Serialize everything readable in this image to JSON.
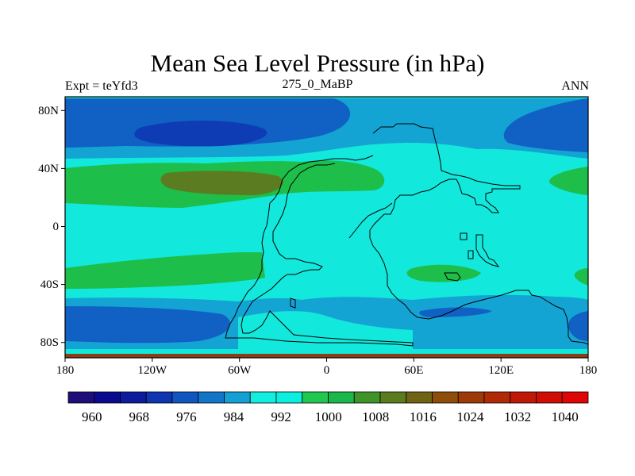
{
  "title": "Mean Sea Level Pressure (in hPa)",
  "subtitle_left": "Expt = teYfd3",
  "subtitle_center": "275_0_MaBP",
  "subtitle_right": "ANN",
  "x_axis": {
    "ticks": [
      "180",
      "120W",
      "60W",
      "0",
      "60E",
      "120E",
      "180"
    ]
  },
  "y_axis": {
    "ticks": [
      "80N",
      "40N",
      "0",
      "40S",
      "80S"
    ]
  },
  "colorbar": {
    "labels": [
      "960",
      "968",
      "976",
      "984",
      "992",
      "1000",
      "1008",
      "1016",
      "1024",
      "1032",
      "1040"
    ],
    "colors": [
      "#1e0e7a",
      "#0a0a8e",
      "#0c1c9c",
      "#0e36b0",
      "#1156c0",
      "#1276c8",
      "#14a0d4",
      "#12eee0",
      "#0af0e0",
      "#20c850",
      "#1ab84a",
      "#3e9428",
      "#5a7c1e",
      "#6e6414",
      "#8e4e0a",
      "#9e3a08",
      "#b02a06",
      "#c01806",
      "#d00c04",
      "#e00404"
    ]
  },
  "field_colors": {
    "ocean_base": "#12e8dc",
    "low_band": "#14a4d4",
    "deep_low": "#1160c4",
    "deepest_low": "#0e3cb4",
    "high_band": "#1ebe4a",
    "highest": "#5c7c22",
    "boundary": "#8e3c14"
  }
}
